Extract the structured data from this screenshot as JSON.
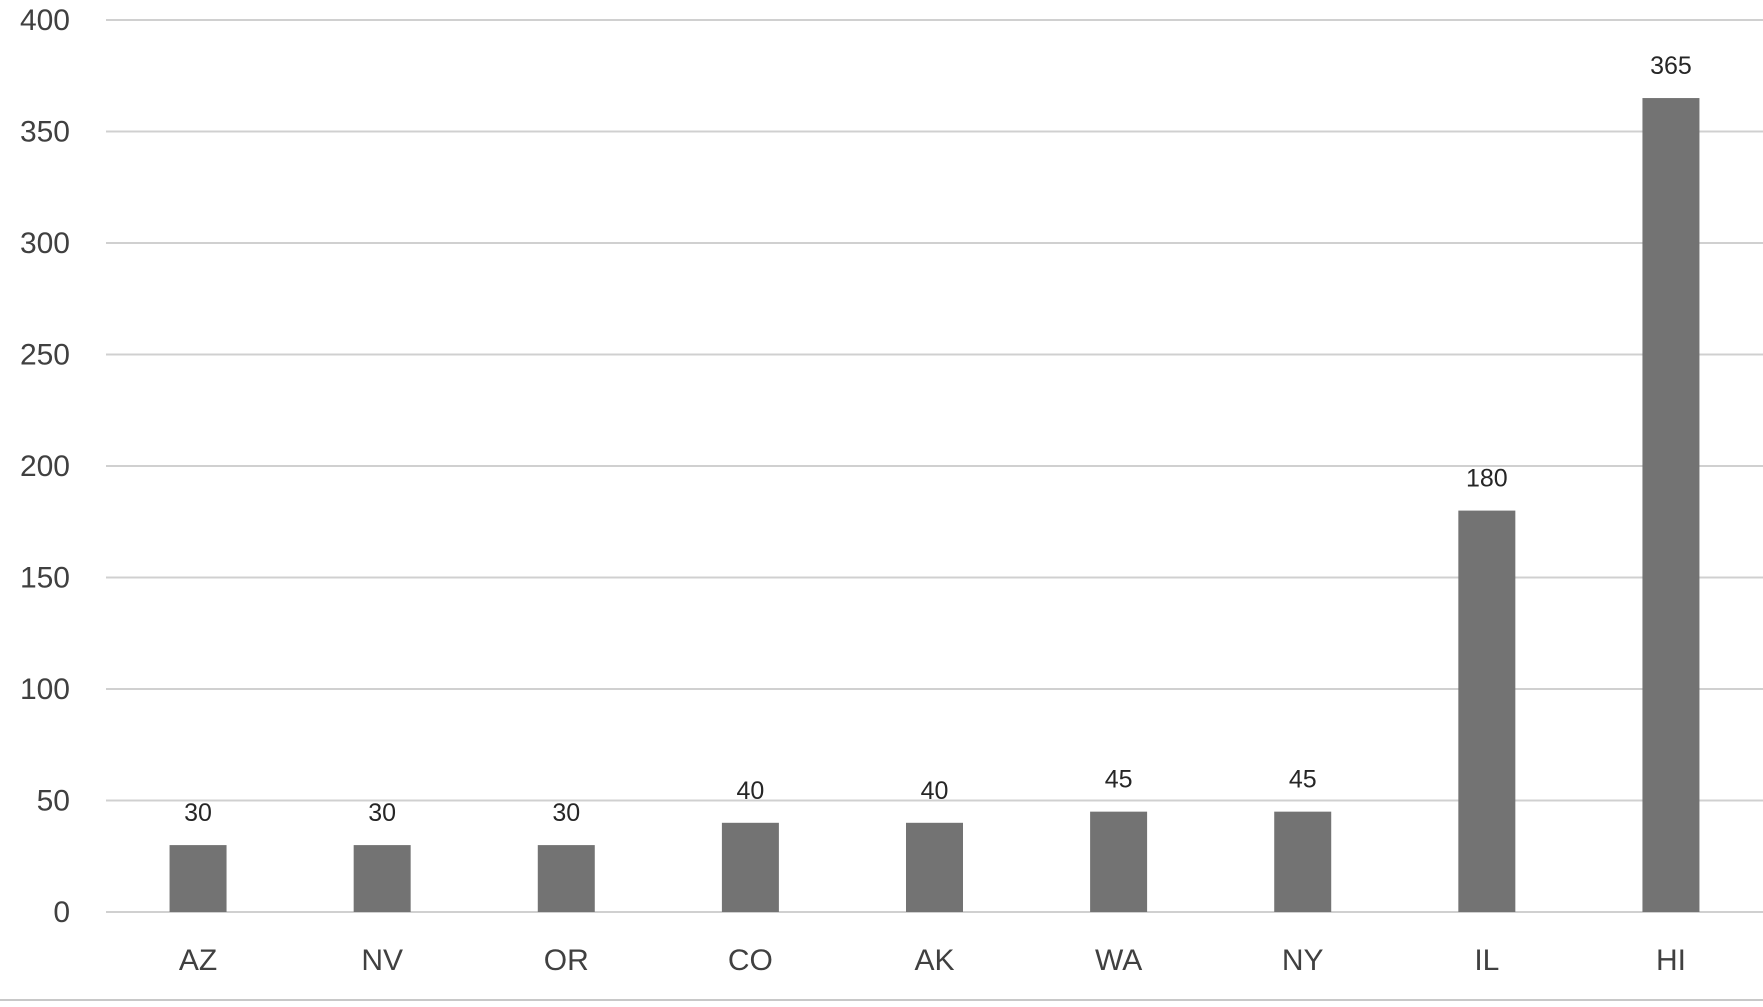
{
  "chart_data": {
    "type": "bar",
    "title": "",
    "xlabel": "",
    "ylabel": "",
    "categories": [
      "AZ",
      "NV",
      "OR",
      "CO",
      "AK",
      "WA",
      "NY",
      "IL",
      "HI"
    ],
    "values": [
      30,
      30,
      30,
      40,
      40,
      45,
      45,
      180,
      365
    ],
    "data_labels": [
      "30",
      "30",
      "30",
      "40",
      "40",
      "45",
      "45",
      "180",
      "365"
    ],
    "ylim": [
      0,
      400
    ],
    "yticks": [
      0,
      50,
      100,
      150,
      200,
      250,
      300,
      350,
      400
    ],
    "ytick_labels": [
      "0",
      "50",
      "100",
      "150",
      "200",
      "250",
      "300",
      "350",
      "400"
    ],
    "grid": true,
    "legend": "none",
    "colors": {
      "bar": "#737373",
      "grid": "#d0d0d0",
      "text": "#404040"
    }
  }
}
